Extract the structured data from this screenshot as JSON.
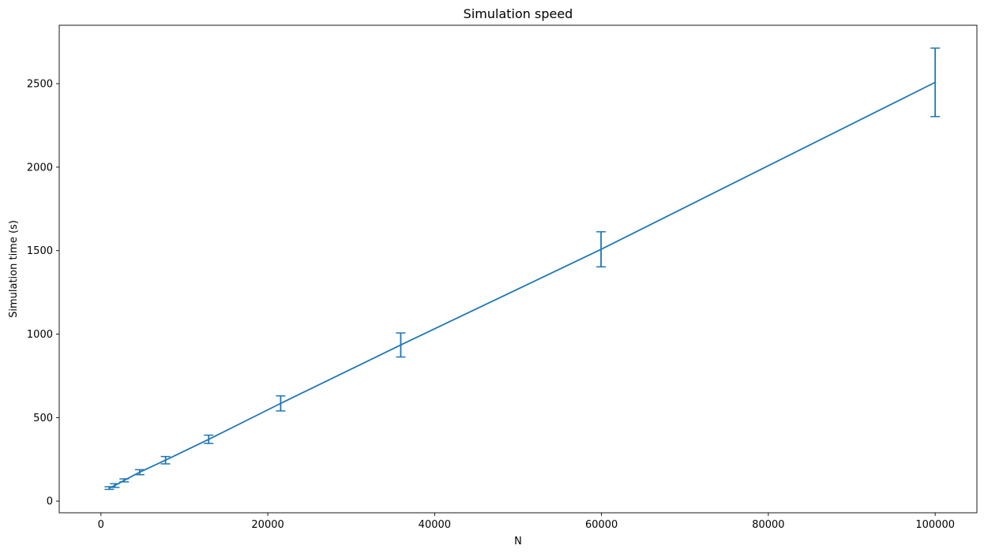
{
  "chart_data": {
    "type": "line",
    "title": "Simulation speed",
    "xlabel": "N",
    "ylabel": "Simulation time (s)",
    "xlim": [
      -5000,
      105000
    ],
    "ylim": [
      -70,
      2850
    ],
    "x_ticks": [
      0,
      20000,
      40000,
      60000,
      80000,
      100000
    ],
    "y_ticks": [
      0,
      500,
      1000,
      1500,
      2000,
      2500
    ],
    "grid": false,
    "legend": "none",
    "color": "#1f77b4",
    "series": [
      {
        "x": [
          1000,
          1668,
          2783,
          4642,
          7743,
          12915,
          21544,
          35938,
          59948,
          100000
        ],
        "values": [
          78,
          93,
          124,
          173,
          245,
          370,
          585,
          935,
          1508,
          2508
        ],
        "error": [
          8,
          11,
          9,
          15,
          22,
          25,
          45,
          72,
          105,
          205
        ]
      }
    ]
  }
}
